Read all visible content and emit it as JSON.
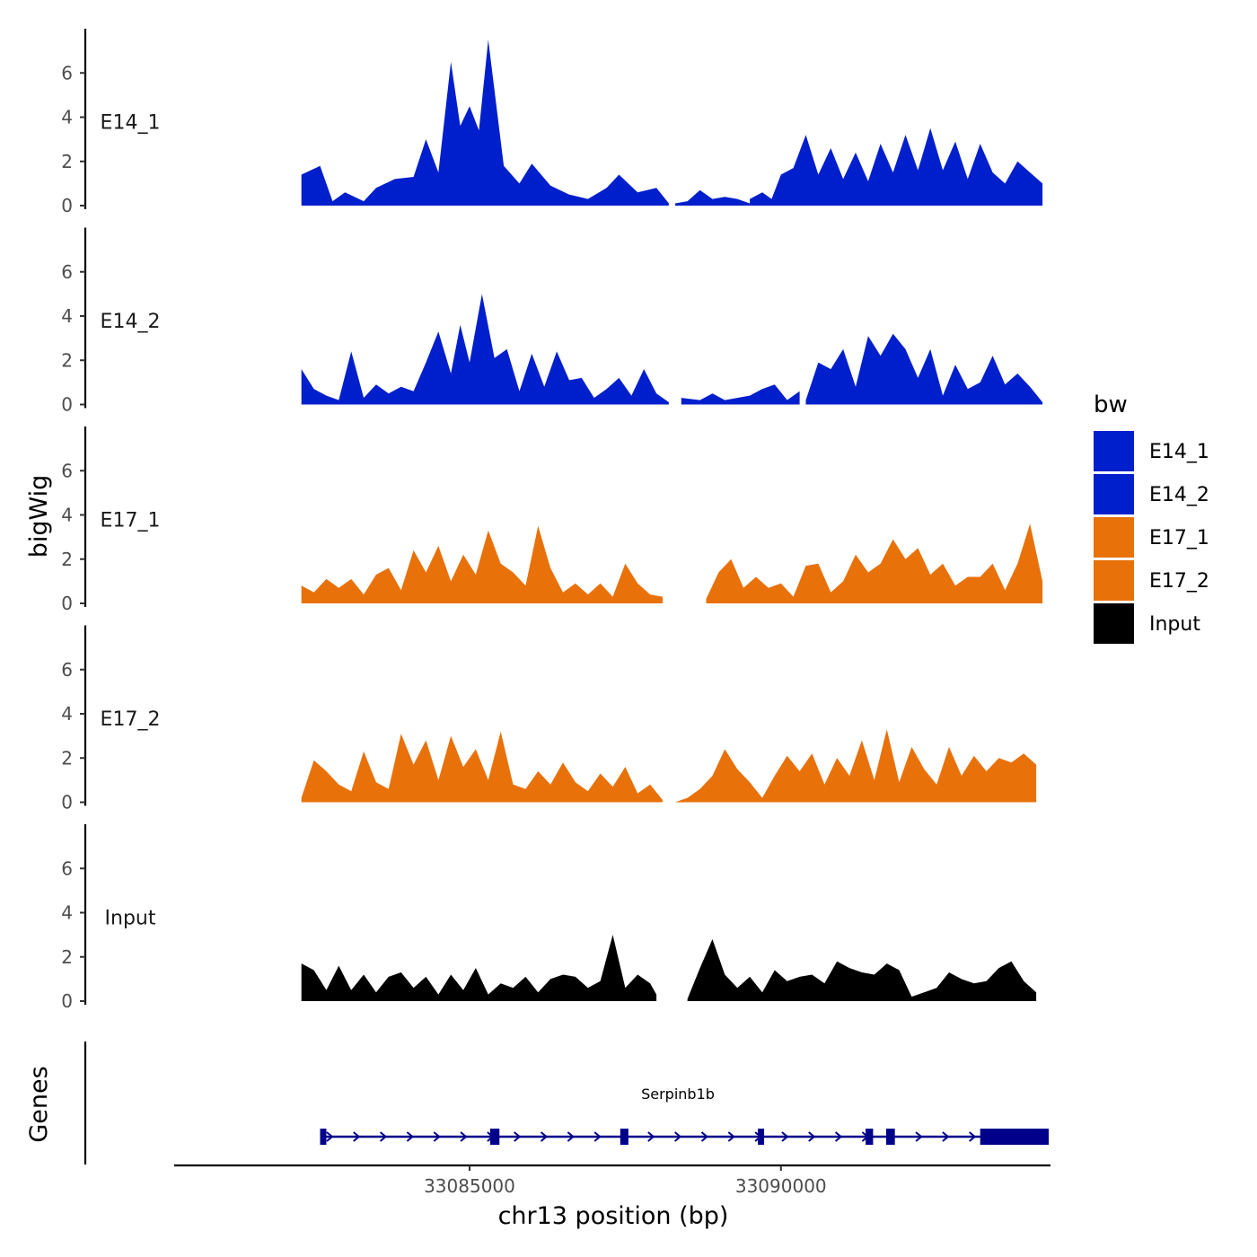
{
  "chart_data": {
    "type": "area",
    "title": "",
    "ylabel": "bigWig",
    "xlabel": "chr13 position (bp)",
    "xlim": [
      33080300,
      33094300
    ],
    "ylim": [
      0,
      8
    ],
    "y_ticks": [
      0,
      2,
      4,
      6
    ],
    "x_ticks": [
      33085000,
      33090000
    ],
    "x_tick_labels": [
      "33085000",
      "33090000"
    ],
    "legend": {
      "title": "bw",
      "position": "right",
      "entries": [
        {
          "label": "E14_1",
          "color": "#001FCC"
        },
        {
          "label": "E14_2",
          "color": "#001FCC"
        },
        {
          "label": "E17_1",
          "color": "#E8710A"
        },
        {
          "label": "E17_2",
          "color": "#E8710A"
        },
        {
          "label": "Input",
          "color": "#000000"
        }
      ]
    },
    "series": [
      {
        "name": "E14_1",
        "color": "#001FCC",
        "segments": [
          {
            "x": [
              33082300,
              33082600,
              33082800,
              33083000,
              33083300,
              33083500,
              33083800,
              33084100,
              33084300,
              33084500,
              33084700,
              33084850,
              33085000,
              33085150,
              33085300,
              33085550,
              33085800,
              33086000,
              33086300,
              33086600,
              33086900,
              33087200,
              33087400,
              33087700,
              33088000,
              33088200
            ],
            "y": [
              1.4,
              1.8,
              0.2,
              0.6,
              0.2,
              0.8,
              1.2,
              1.3,
              3.0,
              1.5,
              6.5,
              3.6,
              4.5,
              3.4,
              7.5,
              1.8,
              1.0,
              1.9,
              0.9,
              0.5,
              0.3,
              0.8,
              1.4,
              0.6,
              0.8,
              0.1
            ]
          },
          {
            "x": [
              33088300,
              33088500,
              33088700,
              33088900,
              33089100,
              33089300,
              33089500
            ],
            "y": [
              0.1,
              0.2,
              0.7,
              0.3,
              0.4,
              0.3,
              0.1
            ]
          },
          {
            "x": [
              33089500,
              33089700,
              33089850,
              33090000,
              33090200,
              33090400,
              33090600,
              33090800,
              33091000,
              33091200,
              33091400,
              33091600,
              33091800,
              33092000,
              33092200,
              33092400,
              33092600,
              33092800,
              33093000,
              33093200,
              33093400,
              33093600,
              33093800,
              33094000,
              33094200
            ],
            "y": [
              0.3,
              0.6,
              0.3,
              1.4,
              1.7,
              3.2,
              1.4,
              2.6,
              1.2,
              2.4,
              1.1,
              2.8,
              1.5,
              3.2,
              1.6,
              3.5,
              1.6,
              2.9,
              1.2,
              2.8,
              1.5,
              1.0,
              2.0,
              1.5,
              1.0
            ]
          }
        ]
      },
      {
        "name": "E14_2",
        "color": "#001FCC",
        "segments": [
          {
            "x": [
              33082300,
              33082500,
              33082700,
              33082900,
              33083100,
              33083300,
              33083500,
              33083700,
              33083900,
              33084100,
              33084300,
              33084500,
              33084700,
              33084850,
              33085000,
              33085200,
              33085400,
              33085600,
              33085800,
              33086000,
              33086200,
              33086400,
              33086600,
              33086800,
              33087000,
              33087200,
              33087400,
              33087600,
              33087800,
              33088000,
              33088200
            ],
            "y": [
              1.6,
              0.7,
              0.4,
              0.2,
              2.4,
              0.3,
              0.9,
              0.5,
              0.8,
              0.6,
              1.9,
              3.3,
              1.4,
              3.6,
              1.9,
              5.0,
              2.1,
              2.5,
              0.6,
              2.3,
              0.8,
              2.4,
              1.1,
              1.2,
              0.3,
              0.7,
              1.2,
              0.4,
              1.6,
              0.5,
              0.1
            ]
          },
          {
            "x": [
              33088400,
              33088700,
              33088900,
              33089100,
              33089300,
              33089500,
              33089700,
              33089900,
              33090100,
              33090300
            ],
            "y": [
              0.3,
              0.2,
              0.5,
              0.2,
              0.3,
              0.4,
              0.7,
              0.9,
              0.2,
              0.6
            ]
          },
          {
            "x": [
              33090400,
              33090600,
              33090800,
              33091000,
              33091200,
              33091400,
              33091600,
              33091800,
              33092000,
              33092200,
              33092400,
              33092600,
              33092800,
              33093000,
              33093200,
              33093400,
              33093600,
              33093800,
              33094000,
              33094200
            ],
            "y": [
              0.2,
              1.9,
              1.6,
              2.5,
              0.8,
              3.1,
              2.2,
              3.2,
              2.5,
              1.2,
              2.5,
              0.4,
              1.8,
              0.7,
              1.0,
              2.2,
              0.9,
              1.4,
              0.8,
              0.1
            ]
          }
        ]
      },
      {
        "name": "E17_1",
        "color": "#E8710A",
        "segments": [
          {
            "x": [
              33082300,
              33082500,
              33082700,
              33082900,
              33083100,
              33083300,
              33083500,
              33083700,
              33083900,
              33084100,
              33084300,
              33084500,
              33084700,
              33084900,
              33085100,
              33085300,
              33085500,
              33085700,
              33085900,
              33086100,
              33086300,
              33086500,
              33086700,
              33086900,
              33087100,
              33087300,
              33087500,
              33087700,
              33087900,
              33088100
            ],
            "y": [
              0.8,
              0.5,
              1.1,
              0.7,
              1.1,
              0.4,
              1.3,
              1.6,
              0.6,
              2.4,
              1.4,
              2.6,
              1.0,
              2.2,
              1.3,
              3.3,
              1.8,
              1.4,
              0.8,
              3.5,
              1.6,
              0.5,
              0.9,
              0.4,
              0.9,
              0.3,
              1.8,
              0.9,
              0.4,
              0.3
            ]
          },
          {
            "x": [
              33088800,
              33089000,
              33089200,
              33089400,
              33089600,
              33089800,
              33090000,
              33090200,
              33090400,
              33090600,
              33090800,
              33091000,
              33091200,
              33091400,
              33091600,
              33091800,
              33092000,
              33092200,
              33092400,
              33092600,
              33092800,
              33093000,
              33093200,
              33093400,
              33093600,
              33093800,
              33094000,
              33094200
            ],
            "y": [
              0.2,
              1.4,
              2.0,
              0.7,
              1.2,
              0.7,
              0.9,
              0.3,
              1.7,
              1.8,
              0.5,
              1.0,
              2.2,
              1.4,
              1.8,
              2.9,
              2.0,
              2.5,
              1.3,
              1.8,
              0.8,
              1.2,
              1.2,
              1.8,
              0.6,
              1.8,
              3.6,
              1.0
            ]
          }
        ]
      },
      {
        "name": "E17_2",
        "color": "#E8710A",
        "segments": [
          {
            "x": [
              33082300,
              33082500,
              33082700,
              33082900,
              33083100,
              33083300,
              33083500,
              33083700,
              33083900,
              33084100,
              33084300,
              33084500,
              33084700,
              33084900,
              33085100,
              33085300,
              33085500,
              33085700,
              33085900,
              33086100,
              33086300,
              33086500,
              33086700,
              33086900,
              33087100,
              33087300,
              33087500,
              33087700,
              33087900,
              33088100
            ],
            "y": [
              0.2,
              1.9,
              1.4,
              0.8,
              0.5,
              2.3,
              0.9,
              0.6,
              3.1,
              1.7,
              2.8,
              1.0,
              3.0,
              1.6,
              2.4,
              1.0,
              3.2,
              0.8,
              0.6,
              1.4,
              0.8,
              1.8,
              0.9,
              0.5,
              1.3,
              0.7,
              1.6,
              0.4,
              0.8,
              0.1
            ]
          },
          {
            "x": [
              33088300,
              33088500,
              33088700,
              33088900,
              33089100,
              33089300,
              33089500,
              33089700,
              33089900,
              33090100,
              33090300,
              33090500,
              33090700,
              33090900,
              33091100,
              33091300,
              33091500,
              33091700,
              33091900,
              33092100,
              33092300,
              33092500,
              33092700,
              33092900,
              33093100,
              33093300,
              33093500,
              33093700,
              33093900,
              33094100
            ],
            "y": [
              0.0,
              0.2,
              0.6,
              1.2,
              2.4,
              1.5,
              0.9,
              0.2,
              1.2,
              2.1,
              1.4,
              2.2,
              0.8,
              2.0,
              1.2,
              2.8,
              1.0,
              3.3,
              0.9,
              2.5,
              1.5,
              0.8,
              2.5,
              1.2,
              2.1,
              1.4,
              2.0,
              1.8,
              2.2,
              1.7
            ]
          }
        ]
      },
      {
        "name": "Input",
        "color": "#000000",
        "segments": [
          {
            "x": [
              33082300,
              33082500,
              33082700,
              33082900,
              33083100,
              33083300,
              33083500,
              33083700,
              33083900,
              33084100,
              33084300,
              33084500,
              33084700,
              33084900,
              33085100,
              33085300,
              33085500,
              33085700,
              33085900,
              33086100,
              33086300,
              33086500,
              33086700,
              33086900,
              33087100,
              33087300,
              33087500,
              33087700,
              33087900,
              33088000
            ],
            "y": [
              1.7,
              1.4,
              0.5,
              1.6,
              0.5,
              1.2,
              0.4,
              1.1,
              1.3,
              0.6,
              1.1,
              0.3,
              1.2,
              0.5,
              1.5,
              0.3,
              0.8,
              0.6,
              1.1,
              0.4,
              1.0,
              1.2,
              1.1,
              0.6,
              0.9,
              3.0,
              0.6,
              1.2,
              0.8,
              0.3
            ]
          },
          {
            "x": [
              33088500,
              33088700,
              33088900,
              33089100,
              33089300,
              33089500,
              33089700,
              33089900,
              33090100,
              33090300,
              33090500,
              33090700,
              33090900,
              33091100,
              33091300,
              33091500,
              33091700,
              33091900,
              33092100,
              33092300,
              33092500,
              33092700,
              33092900,
              33093100,
              33093300,
              33093500,
              33093700,
              33093900,
              33094100
            ],
            "y": [
              0.1,
              1.5,
              2.8,
              1.2,
              0.6,
              1.1,
              0.4,
              1.4,
              0.9,
              1.1,
              1.2,
              0.8,
              1.8,
              1.5,
              1.3,
              1.2,
              1.7,
              1.4,
              0.2,
              0.4,
              0.6,
              1.3,
              1.0,
              0.8,
              0.9,
              1.5,
              1.8,
              0.9,
              0.4
            ]
          }
        ]
      }
    ],
    "gene_track": {
      "label": "Genes",
      "gene": "Serpinb1b",
      "strand": "+",
      "start": 33082600,
      "end": 33094300,
      "exons": [
        [
          33082600,
          33082700
        ],
        [
          33085330,
          33085480
        ],
        [
          33087420,
          33087550
        ],
        [
          33089630,
          33089730
        ],
        [
          33091360,
          33091480
        ],
        [
          33091690,
          33091830
        ],
        [
          33093200,
          33094300
        ]
      ]
    }
  }
}
